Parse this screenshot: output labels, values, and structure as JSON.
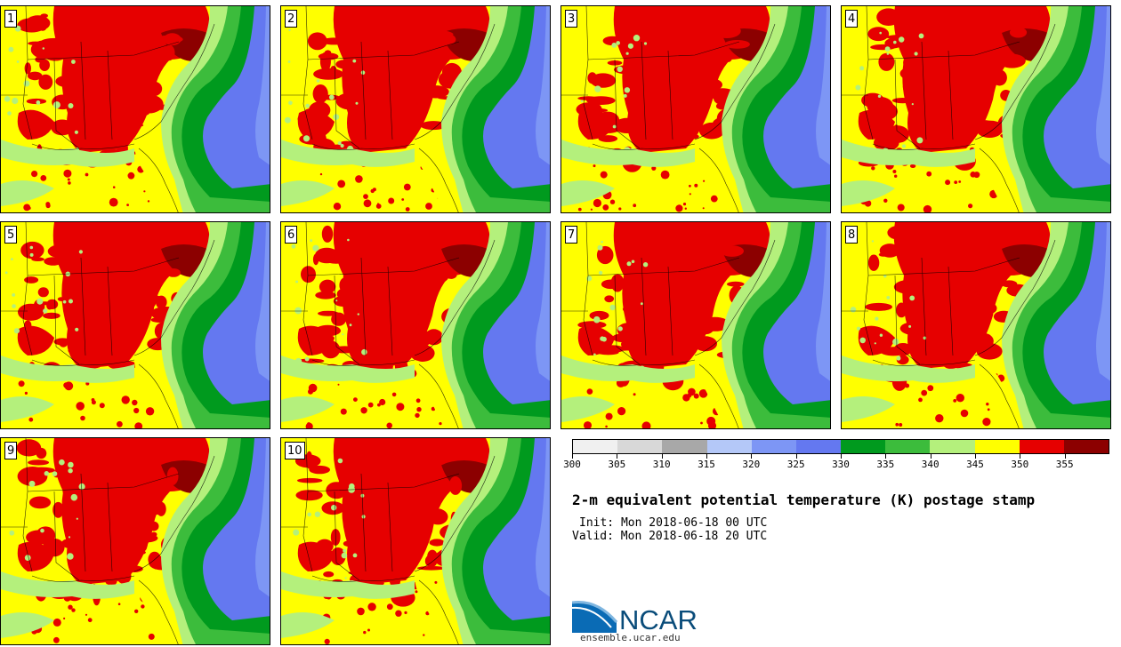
{
  "panels": [
    {
      "label": "1"
    },
    {
      "label": "2"
    },
    {
      "label": "3"
    },
    {
      "label": "4"
    },
    {
      "label": "5"
    },
    {
      "label": "6"
    },
    {
      "label": "7"
    },
    {
      "label": "8"
    },
    {
      "label": "9"
    },
    {
      "label": "10"
    }
  ],
  "colorbar": {
    "colors": [
      "#f0f0f0",
      "#d8d8d8",
      "#a8a8a8",
      "#b4c8f8",
      "#7d96f5",
      "#6478f0",
      "#009a1e",
      "#3cbc3c",
      "#b4f07c",
      "#ffff00",
      "#e60000",
      "#8c0000"
    ],
    "ticks": [
      "300",
      "305",
      "310",
      "315",
      "320",
      "325",
      "330",
      "335",
      "340",
      "345",
      "350",
      "355"
    ]
  },
  "title": "2-m equivalent potential temperature (K) postage stamp",
  "init": "Init: Mon 2018-06-18 00 UTC",
  "valid": "Valid: Mon 2018-06-18 20 UTC",
  "logo": {
    "text": "NCAR",
    "site": "ensemble.ucar.edu",
    "accent": "#0a6bb5"
  },
  "map_colors": {
    "warm_land": "#ffff00",
    "hot_land": "#e60000",
    "very_hot": "#8c0000",
    "coastal_light": "#b4f07c",
    "coastal_mid": "#3cbc3c",
    "ocean_green": "#009a1e",
    "ocean_blue": "#6478f0",
    "ocean_far": "#7d96f5"
  }
}
